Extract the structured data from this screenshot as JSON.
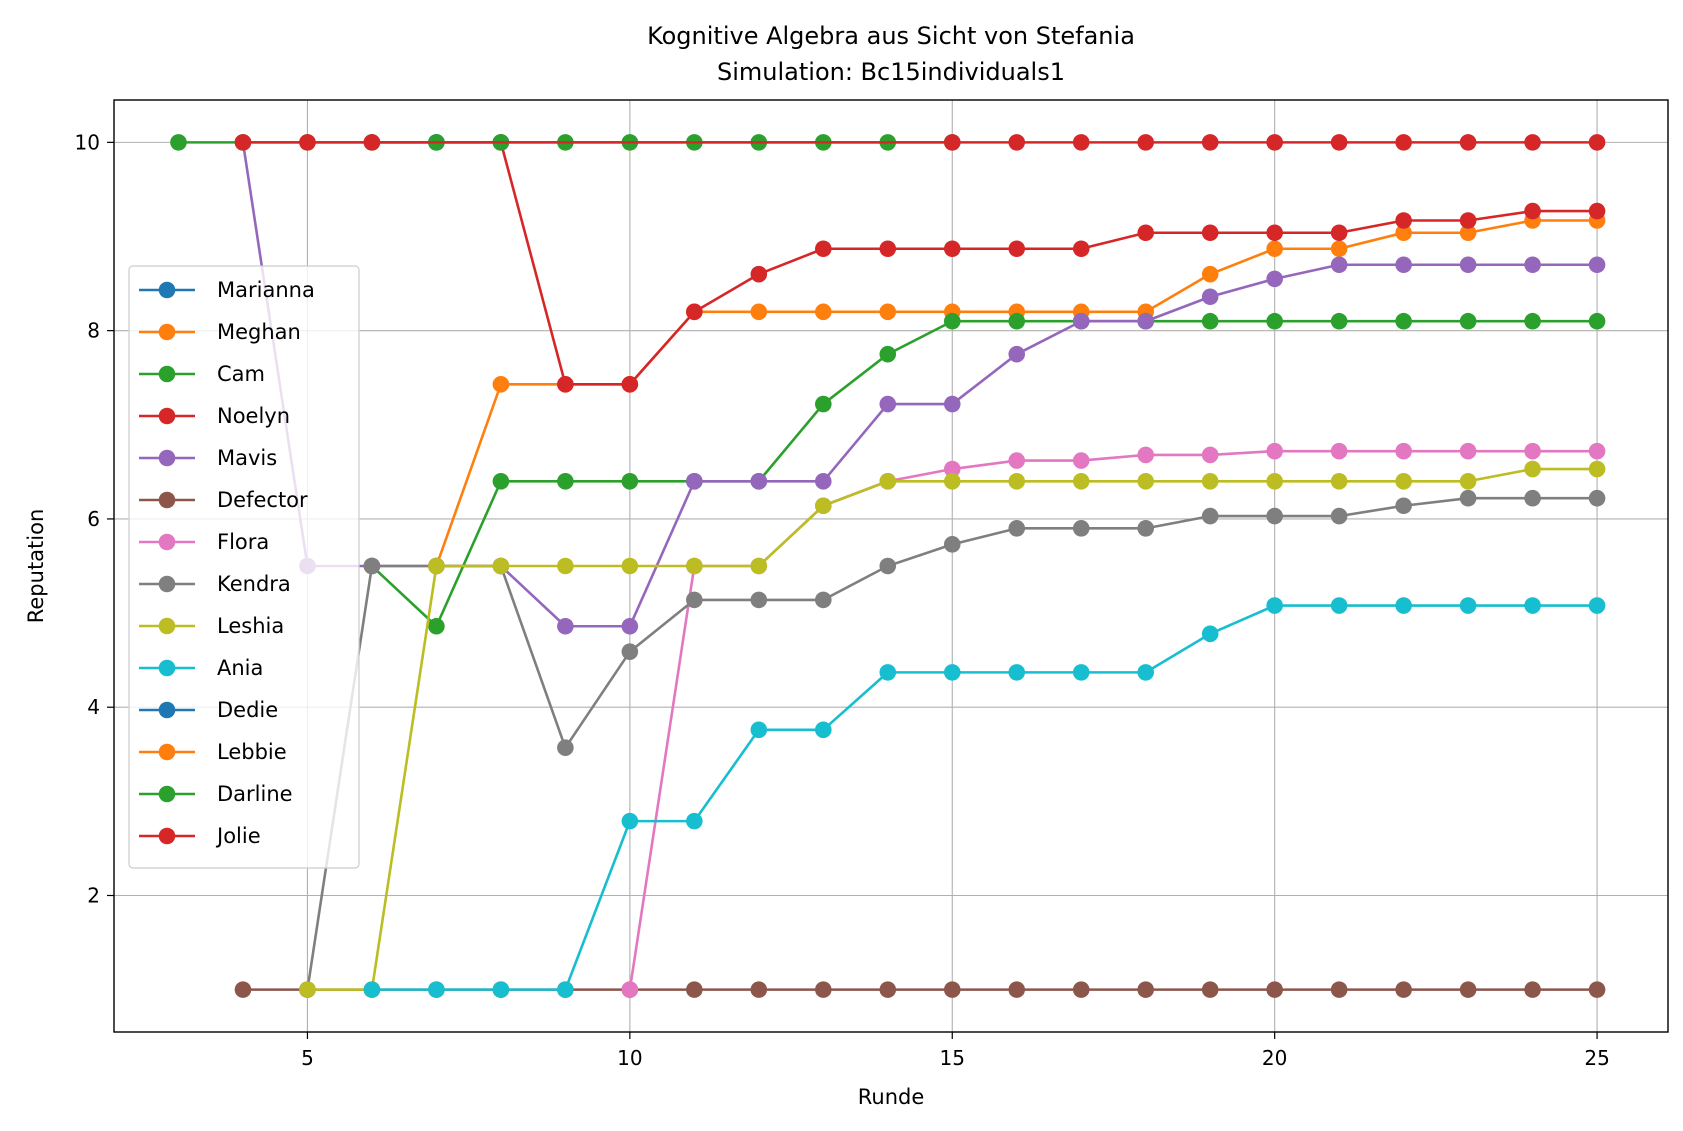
{
  "chart_data": {
    "type": "line",
    "title": "Kognitive Algebra aus Sicht von Stefania",
    "subtitle": "Simulation: Bc15individuals1",
    "xlabel": "Runde",
    "ylabel": "Reputation",
    "xlim": [
      2,
      26.1
    ],
    "ylim": [
      0.55,
      10.45
    ],
    "xticks": [
      5,
      10,
      15,
      20,
      25
    ],
    "yticks": [
      2,
      4,
      6,
      8,
      10
    ],
    "grid": true,
    "legend_position": "center-left",
    "series": [
      {
        "name": "Marianna",
        "color": "#1f77b4",
        "x": [
          6,
          7
        ],
        "y": [
          10,
          10
        ]
      },
      {
        "name": "Meghan",
        "color": "#ff7f0e",
        "x": [
          7,
          8,
          9,
          10,
          11,
          12,
          13,
          14,
          15,
          16,
          17,
          18,
          19,
          20,
          21,
          22,
          23,
          24,
          25
        ],
        "y": [
          5.5,
          7.43,
          7.43,
          7.43,
          8.2,
          8.2,
          8.2,
          8.2,
          8.2,
          8.2,
          8.2,
          8.2,
          8.6,
          8.87,
          8.87,
          9.04,
          9.04,
          9.17,
          9.17
        ]
      },
      {
        "name": "Cam",
        "color": "#2ca02c",
        "x": [
          6,
          7,
          8,
          9,
          10,
          11,
          12,
          13,
          14,
          15,
          16,
          17,
          18,
          19,
          20,
          21,
          22,
          23,
          24,
          25
        ],
        "y": [
          5.5,
          4.86,
          6.4,
          6.4,
          6.4,
          6.4,
          6.4,
          7.22,
          7.75,
          8.1,
          8.1,
          8.1,
          8.1,
          8.1,
          8.1,
          8.1,
          8.1,
          8.1,
          8.1,
          8.1
        ]
      },
      {
        "name": "Noelyn",
        "color": "#d62728",
        "x": [
          8,
          9,
          10,
          11,
          12,
          13,
          14,
          15,
          16,
          17,
          18,
          19,
          20,
          21,
          22,
          23,
          24,
          25
        ],
        "y": [
          10,
          7.43,
          7.43,
          8.2,
          8.6,
          8.87,
          8.87,
          8.87,
          8.87,
          8.87,
          9.04,
          9.04,
          9.04,
          9.04,
          9.17,
          9.17,
          9.27,
          9.27
        ]
      },
      {
        "name": "Mavis",
        "color": "#9467bd",
        "x": [
          4,
          5,
          6,
          7,
          8,
          9,
          10,
          11,
          12,
          13,
          14,
          15,
          16,
          17,
          18,
          19,
          20,
          21,
          22,
          23,
          24,
          25
        ],
        "y": [
          10,
          5.5,
          5.5,
          5.5,
          5.5,
          4.86,
          4.86,
          6.4,
          6.4,
          6.4,
          7.22,
          7.22,
          7.75,
          8.1,
          8.1,
          8.36,
          8.55,
          8.7,
          8.7,
          8.7,
          8.7,
          8.7
        ]
      },
      {
        "name": "Defector",
        "color": "#8c564b",
        "x": [
          4,
          5,
          6,
          7,
          8,
          9,
          10,
          11,
          12,
          13,
          14,
          15,
          16,
          17,
          18,
          19,
          20,
          21,
          22,
          23,
          24,
          25
        ],
        "y": [
          1,
          1,
          1,
          1,
          1,
          1,
          1,
          1,
          1,
          1,
          1,
          1,
          1,
          1,
          1,
          1,
          1,
          1,
          1,
          1,
          1,
          1
        ]
      },
      {
        "name": "Flora",
        "color": "#e377c2",
        "x": [
          10,
          11,
          12,
          13,
          14,
          15,
          16,
          17,
          18,
          19,
          20,
          21,
          22,
          23,
          24,
          25
        ],
        "y": [
          1,
          5.5,
          5.5,
          6.14,
          6.4,
          6.53,
          6.62,
          6.62,
          6.68,
          6.68,
          6.72,
          6.72,
          6.72,
          6.72,
          6.72,
          6.72
        ]
      },
      {
        "name": "Kendra",
        "color": "#7f7f7f",
        "x": [
          5,
          6,
          7,
          8,
          9,
          10,
          11,
          12,
          13,
          14,
          15,
          16,
          17,
          18,
          19,
          20,
          21,
          22,
          23,
          24,
          25
        ],
        "y": [
          1,
          5.5,
          5.5,
          5.5,
          3.57,
          4.59,
          5.14,
          5.14,
          5.14,
          5.5,
          5.73,
          5.9,
          5.9,
          5.9,
          6.03,
          6.03,
          6.03,
          6.14,
          6.22,
          6.22,
          6.22
        ]
      },
      {
        "name": "Leshia",
        "color": "#bcbd22",
        "x": [
          5,
          6,
          7,
          8,
          9,
          10,
          11,
          12,
          13,
          14,
          15,
          16,
          17,
          18,
          19,
          20,
          21,
          22,
          23,
          24,
          25
        ],
        "y": [
          1,
          1,
          5.5,
          5.5,
          5.5,
          5.5,
          5.5,
          5.5,
          6.14,
          6.4,
          6.4,
          6.4,
          6.4,
          6.4,
          6.4,
          6.4,
          6.4,
          6.4,
          6.4,
          6.53,
          6.53
        ]
      },
      {
        "name": "Ania",
        "color": "#17becf",
        "x": [
          6,
          7,
          8,
          9,
          10,
          11,
          12,
          13,
          14,
          15,
          16,
          17,
          18,
          19,
          20,
          21,
          22,
          23,
          24,
          25
        ],
        "y": [
          1,
          1,
          1,
          1,
          2.79,
          2.79,
          3.76,
          3.76,
          4.37,
          4.37,
          4.37,
          4.37,
          4.37,
          4.78,
          5.08,
          5.08,
          5.08,
          5.08,
          5.08,
          5.08
        ]
      },
      {
        "name": "Dedie",
        "color": "#1f77b4",
        "x": [
          7,
          8
        ],
        "y": [
          10,
          10
        ]
      },
      {
        "name": "Lebbie",
        "color": "#ff7f0e",
        "x": [],
        "y": []
      },
      {
        "name": "Darline",
        "color": "#2ca02c",
        "x": [
          3,
          4,
          5,
          6,
          7,
          8,
          9,
          10,
          11,
          12,
          13,
          14,
          15
        ],
        "y": [
          10,
          10,
          10,
          10,
          10,
          10,
          10,
          10,
          10,
          10,
          10,
          10,
          10
        ]
      },
      {
        "name": "Jolie",
        "color": "#d62728",
        "x": [
          4,
          5,
          6,
          15,
          16,
          17,
          18,
          19,
          20,
          21,
          22,
          23,
          24,
          25
        ],
        "y": [
          10,
          10,
          10,
          10,
          10,
          10,
          10,
          10,
          10,
          10,
          10,
          10,
          10,
          10
        ]
      }
    ]
  }
}
